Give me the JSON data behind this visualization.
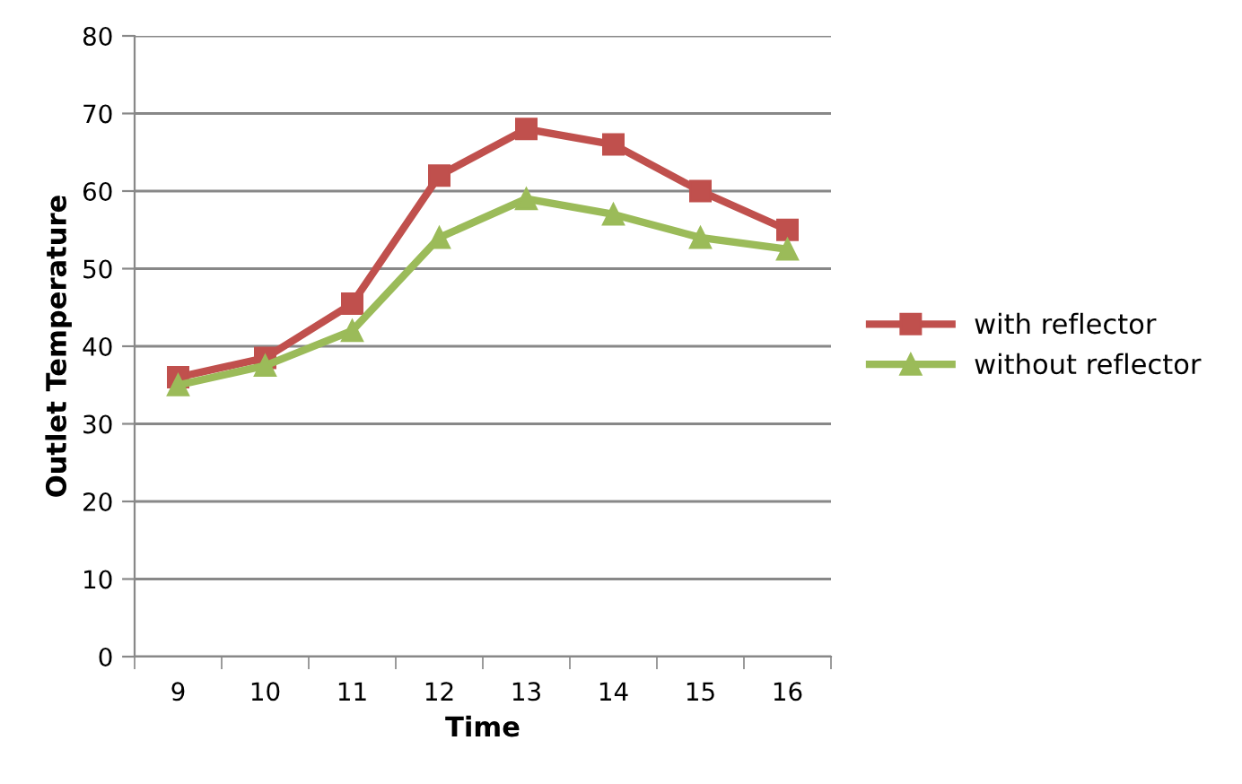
{
  "chart_data": {
    "type": "line",
    "xlabel": "Time",
    "ylabel": "Outlet Temperature",
    "categories": [
      "9",
      "10",
      "11",
      "12",
      "13",
      "14",
      "15",
      "16"
    ],
    "series": [
      {
        "name": "with reflector",
        "color": "#c0504d",
        "marker": "square",
        "values": [
          36,
          38.5,
          45.5,
          62,
          68,
          66,
          60,
          55
        ]
      },
      {
        "name": "without reflector",
        "color": "#9bbb59",
        "marker": "triangle",
        "values": [
          35,
          37.5,
          42,
          54,
          59,
          57,
          54,
          52.5
        ]
      }
    ],
    "ylim": [
      0,
      80
    ],
    "yticks": [
      0,
      10,
      20,
      30,
      40,
      50,
      60,
      70,
      80
    ],
    "grid": "y",
    "legend": "right",
    "line_style": "solid"
  }
}
